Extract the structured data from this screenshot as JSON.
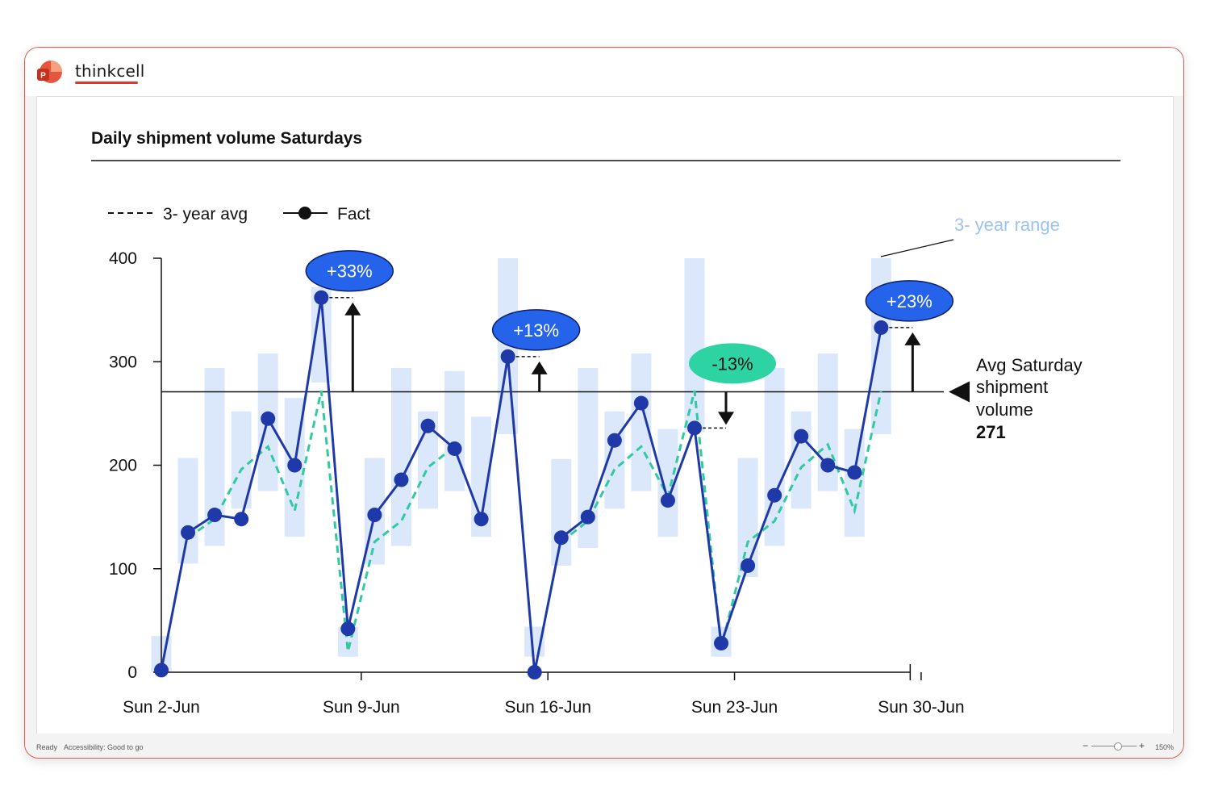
{
  "app": {
    "title": "thinkcell",
    "status_ready": "Ready",
    "status_accessibility": "Accessibility: Good to go",
    "zoom_minus": "−",
    "zoom_plus": "+",
    "zoom_level": "150%"
  },
  "chart_data": {
    "type": "line",
    "title": "Daily shipment volume Saturdays",
    "xlabel": "",
    "ylabel": "",
    "ylim": [
      0,
      400
    ],
    "y_ticks": [
      "0",
      "100",
      "200",
      "300",
      "400"
    ],
    "x_tick_labels": [
      {
        "index": 0,
        "label": "Sun 2-Jun"
      },
      {
        "index": 7,
        "label": "Sun 9-Jun"
      },
      {
        "index": 14,
        "label": "Sun 16-Jun"
      },
      {
        "index": 21,
        "label": "Sun 23-Jun"
      },
      {
        "index": 28,
        "label": "Sun 30-Jun"
      }
    ],
    "legend": {
      "placement": "top-left",
      "avg_label": "3- year avg",
      "fact_label": "Fact"
    },
    "range_label": "3- year range",
    "series": [
      {
        "name": "Fact",
        "values": [
          2,
          135,
          152,
          148,
          245,
          200,
          362,
          42,
          152,
          186,
          238,
          216,
          148,
          305,
          0,
          130,
          150,
          224,
          260,
          166,
          236,
          28,
          103,
          171,
          228,
          200,
          193,
          333
        ]
      },
      {
        "name": "3- year avg",
        "values": [
          null,
          130,
          148,
          196,
          218,
          156,
          272,
          20,
          126,
          146,
          198,
          218,
          null,
          null,
          null,
          126,
          146,
          196,
          218,
          170,
          272,
          24,
          126,
          146,
          198,
          220,
          156,
          272
        ]
      }
    ],
    "range_bars": [
      [
        0,
        35
      ],
      [
        105,
        207
      ],
      [
        122,
        294
      ],
      [
        158,
        252
      ],
      [
        175,
        308
      ],
      [
        131,
        265
      ],
      [
        280,
        372
      ],
      [
        15,
        44
      ],
      [
        104,
        207
      ],
      [
        122,
        294
      ],
      [
        158,
        252
      ],
      [
        175,
        291
      ],
      [
        131,
        247
      ],
      [
        230,
        400
      ],
      [
        15,
        44
      ],
      [
        103,
        206
      ],
      [
        120,
        294
      ],
      [
        158,
        252
      ],
      [
        175,
        308
      ],
      [
        131,
        235
      ],
      [
        232,
        400
      ],
      [
        15,
        44
      ],
      [
        92,
        207
      ],
      [
        122,
        294
      ],
      [
        158,
        252
      ],
      [
        175,
        308
      ],
      [
        131,
        235
      ],
      [
        230,
        400
      ]
    ],
    "reference_line": {
      "value": 271,
      "label": [
        "Avg Saturday",
        "shipment",
        "volume"
      ],
      "value_label": "271"
    },
    "callouts": [
      {
        "index": 6,
        "label": "+33%",
        "direction": "up",
        "color": "#2563eb"
      },
      {
        "index": 13,
        "label": "+13%",
        "direction": "up",
        "color": "#2563eb"
      },
      {
        "index": 20,
        "label": "-13%",
        "direction": "down",
        "color": "#2ed3a3"
      },
      {
        "index": 27,
        "label": "+23%",
        "direction": "up",
        "color": "#2563eb"
      }
    ],
    "colors": {
      "fact_line": "#1f3aa8",
      "avg_line": "#2fc9a2",
      "range_bar": "#dbe8fb",
      "range_label": "#9cc4ee"
    }
  }
}
